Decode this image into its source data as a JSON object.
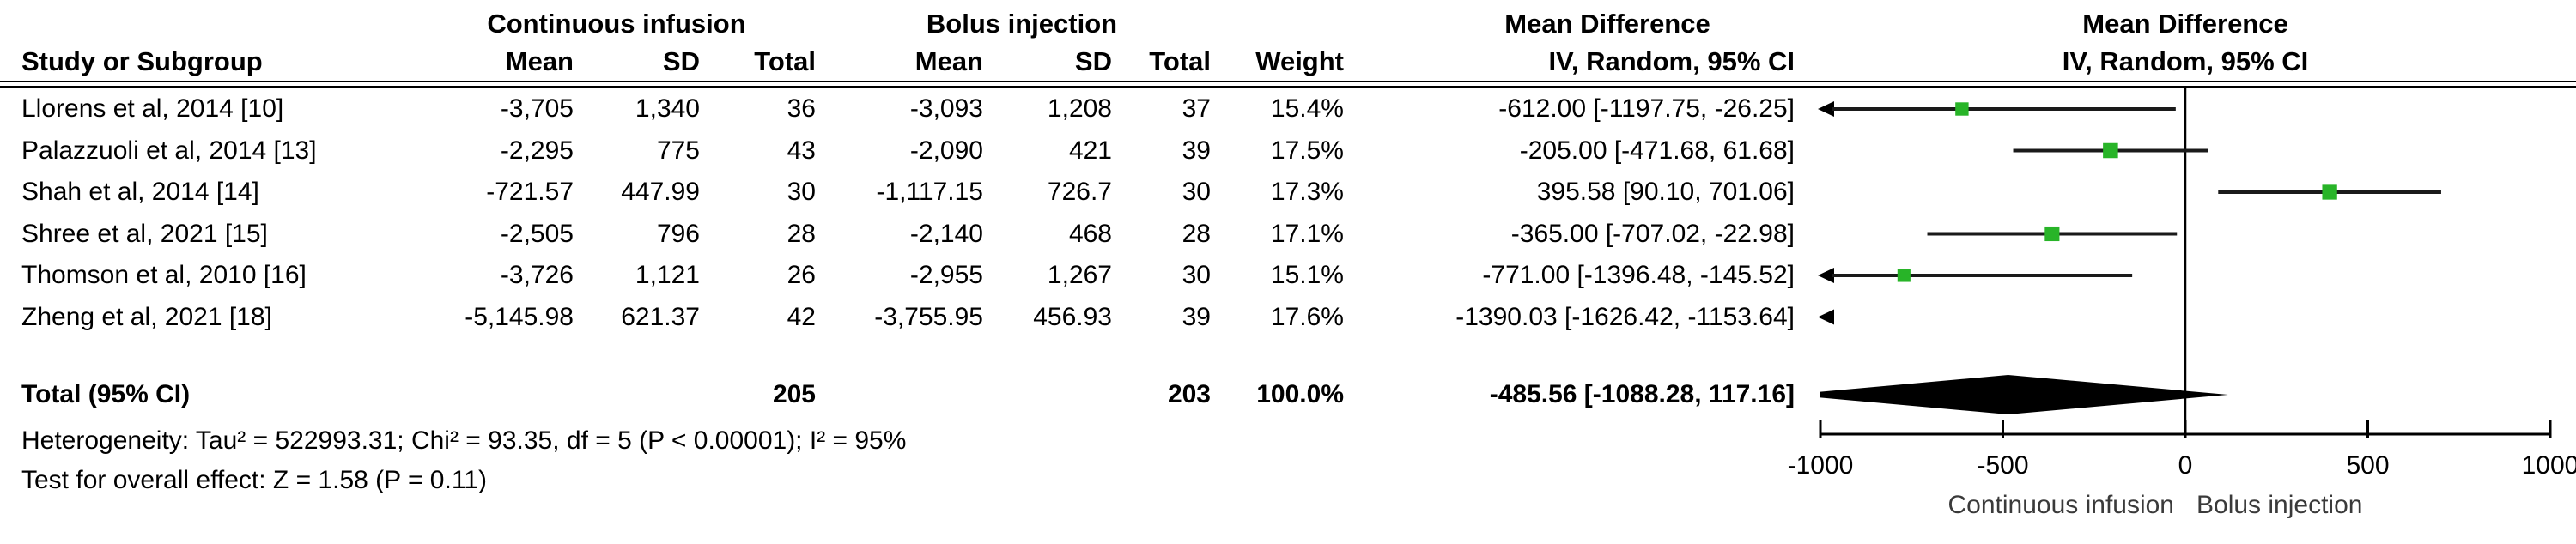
{
  "colors": {
    "marker_green": "#28B428",
    "ci_line": "#1a1a1a",
    "diamond": "#000000",
    "text": "#000000"
  },
  "table": {
    "group1_header": "Continuous infusion",
    "group2_header": "Bolus injection",
    "md_col_header_line1": "Mean Difference",
    "md_col_header_line2": "IV, Random, 95% CI",
    "plot_header_line1": "Mean Difference",
    "plot_header_line2": "IV, Random, 95% CI",
    "col_study": "Study or Subgroup",
    "col_mean": "Mean",
    "col_sd": "SD",
    "col_total": "Total",
    "col_weight": "Weight",
    "studies": [
      {
        "name": "Llorens et al, 2014 [10]",
        "g1_mean": "-3,705",
        "g1_sd": "1,340",
        "g1_total": "36",
        "g2_mean": "-3,093",
        "g2_sd": "1,208",
        "g2_total": "37",
        "weight": "15.4%",
        "md_ci": "-612.00 [-1197.75, -26.25]"
      },
      {
        "name": "Palazzuoli et al, 2014 [13]",
        "g1_mean": "-2,295",
        "g1_sd": "775",
        "g1_total": "43",
        "g2_mean": "-2,090",
        "g2_sd": "421",
        "g2_total": "39",
        "weight": "17.5%",
        "md_ci": "-205.00 [-471.68, 61.68]"
      },
      {
        "name": "Shah et al, 2014 [14]",
        "g1_mean": "-721.57",
        "g1_sd": "447.99",
        "g1_total": "30",
        "g2_mean": "-1,117.15",
        "g2_sd": "726.7",
        "g2_total": "30",
        "weight": "17.3%",
        "md_ci": "395.58 [90.10, 701.06]"
      },
      {
        "name": "Shree et al, 2021 [15]",
        "g1_mean": "-2,505",
        "g1_sd": "796",
        "g1_total": "28",
        "g2_mean": "-2,140",
        "g2_sd": "468",
        "g2_total": "28",
        "weight": "17.1%",
        "md_ci": "-365.00 [-707.02, -22.98]"
      },
      {
        "name": "Thomson et al, 2010 [16]",
        "g1_mean": "-3,726",
        "g1_sd": "1,121",
        "g1_total": "26",
        "g2_mean": "-2,955",
        "g2_sd": "1,267",
        "g2_total": "30",
        "weight": "15.1%",
        "md_ci": "-771.00 [-1396.48, -145.52]"
      },
      {
        "name": "Zheng et al, 2021 [18]",
        "g1_mean": "-5,145.98",
        "g1_sd": "621.37",
        "g1_total": "42",
        "g2_mean": "-3,755.95",
        "g2_sd": "456.93",
        "g2_total": "39",
        "weight": "17.6%",
        "md_ci": "-1390.03 [-1626.42, -1153.64]"
      }
    ],
    "total_row": {
      "label": "Total (95% CI)",
      "g1_total": "205",
      "g2_total": "203",
      "weight": "100.0%",
      "md_ci": "-485.56 [-1088.28, 117.16]"
    },
    "footer": {
      "heterogeneity": "Heterogeneity: Tau² = 522993.31; Chi² = 93.35, df = 5 (P < 0.00001); I² = 95%",
      "overall_effect": "Test for overall effect: Z = 1.58 (P = 0.11)"
    }
  },
  "chart_data": {
    "type": "forest",
    "effect_measure": "Mean Difference, IV, Random, 95% CI",
    "x_axis": {
      "range": [
        -1000,
        1000
      ],
      "ticks": [
        -1000,
        -500,
        0,
        500,
        1000
      ],
      "tick_labels": [
        "-1000",
        "-500",
        "0",
        "500",
        "1000"
      ],
      "zero_line": 0,
      "left_label": "Continuous infusion",
      "right_label": "Bolus injection"
    },
    "studies": [
      {
        "name": "Llorens et al, 2014 [10]",
        "md": -612.0,
        "lo": -1197.75,
        "hi": -26.25,
        "weight_pct": 15.4
      },
      {
        "name": "Palazzuoli et al, 2014 [13]",
        "md": -205.0,
        "lo": -471.68,
        "hi": 61.68,
        "weight_pct": 17.5
      },
      {
        "name": "Shah et al, 2014 [14]",
        "md": 395.58,
        "lo": 90.1,
        "hi": 701.06,
        "weight_pct": 17.3
      },
      {
        "name": "Shree et al, 2021 [15]",
        "md": -365.0,
        "lo": -707.02,
        "hi": -22.98,
        "weight_pct": 17.1
      },
      {
        "name": "Thomson et al, 2010 [16]",
        "md": -771.0,
        "lo": -1396.48,
        "hi": -145.52,
        "weight_pct": 15.1
      },
      {
        "name": "Zheng et al, 2021 [18]",
        "md": -1390.03,
        "lo": -1626.42,
        "hi": -1153.64,
        "weight_pct": 17.6
      }
    ],
    "total": {
      "md": -485.56,
      "lo": -1088.28,
      "hi": 117.16,
      "weight_pct": 100.0
    }
  }
}
